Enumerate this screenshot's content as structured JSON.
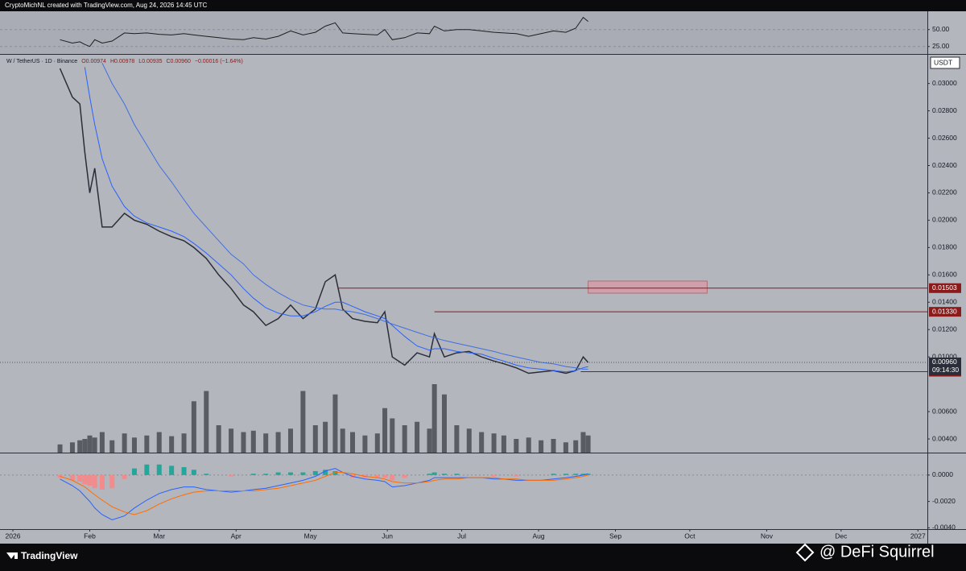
{
  "header": "CryptoMichNL created with TradingView.com, Aug 24, 2026 14:45 UTC",
  "footer_logo": "TradingView",
  "watermark": "@ DeFi Squirrel",
  "chart_data": {
    "type": "line",
    "legend": {
      "symbol": "W / TetherUS · 1D · Binance",
      "values": [
        "O0.00974",
        "H0.00978",
        "L0.00935",
        "C0.00960",
        "−0.00016 (−1.64%)"
      ],
      "color": "#8b1a1a"
    },
    "currency": "USDT",
    "x": [
      19,
      24,
      27,
      29,
      31,
      33,
      36,
      40,
      45,
      49,
      54,
      59,
      64,
      69,
      73,
      78,
      83,
      88,
      93,
      97,
      102,
      107,
      112,
      117,
      122,
      126,
      130,
      133,
      137,
      142,
      147,
      150,
      153,
      158,
      163,
      168,
      170,
      174,
      179,
      184,
      189,
      194,
      198,
      203,
      208,
      213,
      218,
      223,
      227,
      230,
      232
    ],
    "xlim": [
      -2.6,
      368.8
    ],
    "xticks": [
      {
        "value": 0,
        "label": "2026"
      },
      {
        "value": 31,
        "label": "Feb"
      },
      {
        "value": 59,
        "label": "Mar"
      },
      {
        "value": 90,
        "label": "Apr"
      },
      {
        "value": 120,
        "label": "May"
      },
      {
        "value": 151,
        "label": "Jun"
      },
      {
        "value": 181,
        "label": "Jul"
      },
      {
        "value": 212,
        "label": "Aug"
      },
      {
        "value": 243,
        "label": "Sep"
      },
      {
        "value": 273,
        "label": "Oct"
      },
      {
        "value": 304,
        "label": "Nov"
      },
      {
        "value": 334,
        "label": "Dec"
      },
      {
        "value": 365,
        "label": "2027"
      }
    ],
    "series": [
      {
        "color": "#2a2e39",
        "values": [
          0.0311,
          0.029,
          0.0285,
          0.025,
          0.022,
          0.0238,
          0.0195,
          0.0195,
          0.0205,
          0.02,
          0.0197,
          0.0192,
          0.0188,
          0.0185,
          0.018,
          0.0172,
          0.016,
          0.015,
          0.0138,
          0.0133,
          0.0123,
          0.0128,
          0.0138,
          0.0128,
          0.0135,
          0.0155,
          0.016,
          0.0135,
          0.0128,
          0.0126,
          0.0125,
          0.0133,
          0.01,
          0.0094,
          0.0103,
          0.01,
          0.0117,
          0.01,
          0.0103,
          0.0104,
          0.01,
          0.0097,
          0.0095,
          0.0092,
          0.0088,
          0.0089,
          0.009,
          0.0088,
          0.009,
          0.01,
          0.0096
        ]
      },
      {
        "color": "#2962ff",
        "values": [
          null,
          null,
          null,
          0.0312,
          0.029,
          0.027,
          0.0245,
          0.0225,
          0.021,
          0.0203,
          0.0198,
          0.0195,
          0.0192,
          0.0188,
          0.0183,
          0.0176,
          0.0168,
          0.016,
          0.015,
          0.0143,
          0.0136,
          0.0132,
          0.013,
          0.013,
          0.0133,
          0.0137,
          0.014,
          0.014,
          0.0137,
          0.0133,
          0.013,
          0.0128,
          0.0123,
          0.0115,
          0.0108,
          0.0105,
          0.0106,
          0.0106,
          0.0104,
          0.0103,
          0.0102,
          0.0099,
          0.0097,
          0.0094,
          0.0092,
          0.0091,
          0.009,
          0.0089,
          0.009,
          0.0092,
          0.0093
        ]
      },
      {
        "color": "#3f6fe0",
        "values": [
          null,
          null,
          null,
          null,
          null,
          null,
          0.0315,
          0.03,
          0.0285,
          0.027,
          0.0255,
          0.024,
          0.0228,
          0.0215,
          0.0205,
          0.0195,
          0.0185,
          0.0175,
          0.0168,
          0.016,
          0.0153,
          0.0147,
          0.0142,
          0.0138,
          0.0136,
          0.0135,
          0.0135,
          0.0134,
          0.0133,
          0.0131,
          0.0128,
          0.0126,
          0.0124,
          0.0121,
          0.0118,
          0.0115,
          0.0114,
          0.0112,
          0.011,
          0.0108,
          0.0106,
          0.0104,
          0.0102,
          0.01,
          0.0098,
          0.0096,
          0.0095,
          0.0093,
          0.0092,
          0.0091,
          0.0091
        ]
      }
    ],
    "ylim": [
      0.003,
      0.0321
    ],
    "yticks": [
      {
        "value": 0.004,
        "label": "0.00400"
      },
      {
        "value": 0.006,
        "label": "0.00600"
      },
      {
        "value": 0.01,
        "label": "0.01000"
      },
      {
        "value": 0.012,
        "label": "0.01200"
      },
      {
        "value": 0.014,
        "label": "0.01400"
      },
      {
        "value": 0.016,
        "label": "0.01600"
      },
      {
        "value": 0.018,
        "label": "0.01800"
      },
      {
        "value": 0.02,
        "label": "0.02000"
      },
      {
        "value": 0.022,
        "label": "0.02200"
      },
      {
        "value": 0.024,
        "label": "0.02400"
      },
      {
        "value": 0.026,
        "label": "0.02600"
      },
      {
        "value": 0.028,
        "label": "0.02800"
      },
      {
        "value": 0.03,
        "label": "0.03000"
      }
    ],
    "levels": [
      0.01503,
      {
        "value": 0.0133,
        "label": "0.01330"
      },
      0.00892
    ],
    "level_starts": [
      131,
      170,
      229
    ],
    "level_color": "#8b1a1a",
    "last_price": {
      "value": 0.0096,
      "label": "0.00960"
    },
    "countdown": "09:14:30",
    "zone": {
      "x": [
        232,
        280
      ],
      "y": [
        0.01466,
        0.01555
      ],
      "color": "#d89aa6"
    },
    "volume": [
      12,
      15,
      18,
      20,
      25,
      22,
      30,
      18,
      28,
      22,
      25,
      30,
      24,
      28,
      75,
      90,
      40,
      35,
      30,
      32,
      28,
      30,
      35,
      90,
      40,
      45,
      85,
      35,
      30,
      25,
      28,
      65,
      50,
      40,
      45,
      35,
      100,
      85,
      40,
      35,
      30,
      28,
      25,
      20,
      22,
      18,
      20,
      15,
      18,
      30,
      25
    ],
    "volume_color": "#3b3e46",
    "rsi": {
      "color": "#1e1e1e",
      "ylim": [
        14,
        77
      ],
      "yticks": [
        {
          "value": 50,
          "label": "50.00"
        },
        {
          "value": 25,
          "label": "25.00"
        }
      ],
      "values": [
        35,
        30,
        32,
        28,
        25,
        35,
        30,
        33,
        45,
        44,
        45,
        43,
        42,
        44,
        42,
        40,
        38,
        36,
        35,
        38,
        36,
        40,
        48,
        42,
        46,
        55,
        60,
        45,
        44,
        43,
        42,
        50,
        35,
        38,
        45,
        44,
        55,
        48,
        50,
        50,
        48,
        46,
        45,
        44,
        40,
        44,
        48,
        46,
        52,
        68,
        62
      ]
    },
    "macd": {
      "ylim": [
        -0.0041,
        0.00164
      ],
      "yticks": [
        {
          "value": 0,
          "label": "0.0000"
        },
        {
          "value": -0.002,
          "label": "-0.0020"
        },
        {
          "value": -0.004,
          "label": "-0.0040"
        }
      ],
      "colors": {
        "macd": "#2962ff",
        "signal": "#ff6d00",
        "up": "#26a69a",
        "down": "#f28b8b"
      },
      "macd": [
        -0.0003,
        -0.0008,
        -0.0012,
        -0.0016,
        -0.002,
        -0.0025,
        -0.003,
        -0.0034,
        -0.0031,
        -0.0025,
        -0.0019,
        -0.0014,
        -0.0011,
        -0.0009,
        -0.0009,
        -0.0011,
        -0.0012,
        -0.0013,
        -0.0012,
        -0.0011,
        -0.001,
        -0.0008,
        -0.0006,
        -0.0004,
        -0.0001,
        0.0003,
        0.0005,
        0.0002,
        -0.0001,
        -0.0003,
        -0.0004,
        -0.0005,
        -0.0009,
        -0.0008,
        -0.0006,
        -0.0004,
        -0.0002,
        -0.0002,
        -0.0002,
        -0.0002,
        -0.0002,
        -0.0003,
        -0.0003,
        -0.0004,
        -0.0004,
        -0.0004,
        -0.0003,
        -0.0002,
        -0.0001,
        0,
        0.0001
      ],
      "signal": [
        -0.0001,
        -0.0004,
        -0.0007,
        -0.0009,
        -0.0012,
        -0.0015,
        -0.0019,
        -0.0024,
        -0.0028,
        -0.003,
        -0.0027,
        -0.0022,
        -0.0018,
        -0.0015,
        -0.0013,
        -0.0012,
        -0.0012,
        -0.0012,
        -0.0012,
        -0.0012,
        -0.0011,
        -0.001,
        -0.0008,
        -0.0006,
        -0.0004,
        -0.0001,
        0.0002,
        0.0002,
        0.0001,
        -0.0001,
        -0.0002,
        -0.0003,
        -0.0005,
        -0.0006,
        -0.0006,
        -0.0005,
        -0.0004,
        -0.0003,
        -0.0003,
        -0.0002,
        -0.0002,
        -0.0002,
        -0.0003,
        -0.0003,
        -0.0004,
        -0.0004,
        -0.0004,
        -0.0003,
        -0.0002,
        -0.0001,
        0
      ],
      "hist": [
        -0.0002,
        -0.0004,
        -0.0005,
        -0.0007,
        -0.0008,
        -0.001,
        -0.0011,
        -0.001,
        -0.0003,
        0.0005,
        0.0008,
        0.0008,
        0.0007,
        0.0006,
        0.0004,
        0.0001,
        0,
        -0.0001,
        0,
        0.0001,
        0.0001,
        0.0002,
        0.0002,
        0.0002,
        0.0003,
        0.0004,
        0.0003,
        0,
        -0.0002,
        -0.0002,
        -0.0002,
        -0.0002,
        -0.0004,
        -0.0002,
        0,
        0.0001,
        0.0002,
        0.0001,
        0.0001,
        0,
        0,
        -0.0001,
        0,
        -0.0001,
        0,
        0,
        0.0001,
        0.0001,
        0.0001,
        0.0001,
        0.0001
      ]
    }
  }
}
